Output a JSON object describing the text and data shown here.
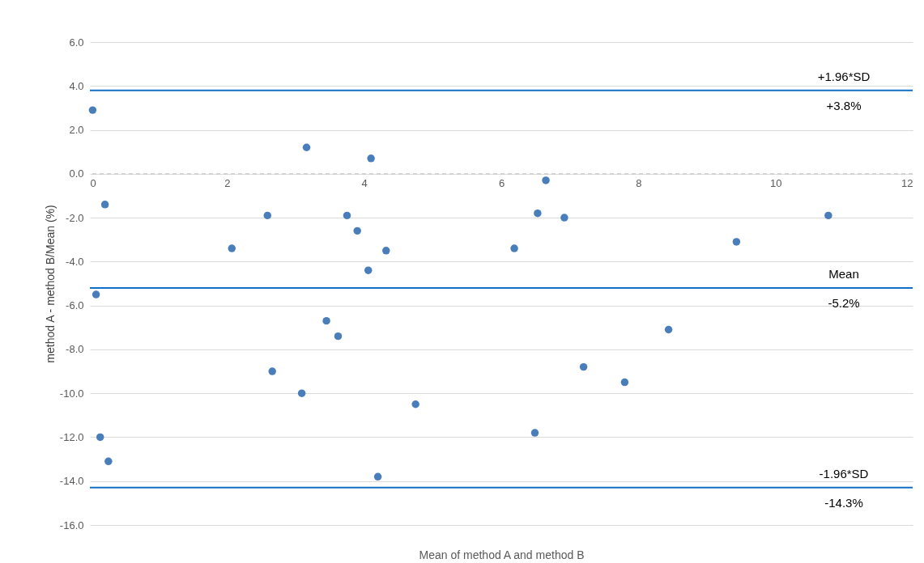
{
  "chart_data": {
    "type": "scatter",
    "xlabel": "Mean of method A and method B",
    "ylabel": "method A - method B/Mean (%)",
    "xlim": [
      0,
      12
    ],
    "xticks": [
      0,
      2,
      4,
      6,
      8,
      10,
      12
    ],
    "ylim": [
      -16,
      6
    ],
    "yticks": [
      {
        "value": -16,
        "label": "-16.0"
      },
      {
        "value": -14,
        "label": "-14.0"
      },
      {
        "value": -12,
        "label": "-12.0"
      },
      {
        "value": -10,
        "label": "-10.0"
      },
      {
        "value": -8,
        "label": "-8.0"
      },
      {
        "value": -6,
        "label": "-6.0"
      },
      {
        "value": -4,
        "label": "-4.0"
      },
      {
        "value": -2,
        "label": "-2.0"
      },
      {
        "value": 0,
        "label": "0.0"
      },
      {
        "value": 2,
        "label": "2.0"
      },
      {
        "value": 4,
        "label": "4.0"
      },
      {
        "value": 6,
        "label": "6.0"
      }
    ],
    "grid": "y",
    "marker": "circle",
    "series": [
      {
        "color": "#4a7ebb",
        "x": [
          0.04,
          0.22,
          0.09,
          0.15,
          0.27,
          2.07,
          2.59,
          2.66,
          3.16,
          3.09,
          3.45,
          3.62,
          3.75,
          3.9,
          4.06,
          4.1,
          4.32,
          4.2,
          4.75,
          6.19,
          6.49,
          6.53,
          6.65,
          6.92,
          7.2,
          7.8,
          8.44,
          9.43,
          10.77
        ],
        "values": [
          2.9,
          -1.4,
          -5.5,
          -12.0,
          -13.1,
          -3.4,
          -1.9,
          -9.0,
          1.2,
          -10.0,
          -6.7,
          -7.4,
          -1.9,
          -2.6,
          -4.4,
          0.7,
          -3.5,
          -13.8,
          -10.5,
          -3.4,
          -11.8,
          -1.8,
          -0.3,
          -2.0,
          -8.8,
          -9.5,
          -7.1,
          -3.1,
          -1.9
        ]
      }
    ],
    "ref_lines": [
      {
        "axis": "y",
        "value": 0,
        "label": null,
        "color": "#bfbfbf",
        "line_style": "dashed"
      },
      {
        "axis": "y",
        "value": 3.8,
        "label": "+1.96*SD",
        "color": "#0f6fc6",
        "line_style": "solid"
      },
      {
        "axis": "y",
        "value": -5.2,
        "label": "Mean",
        "color": "#0f6fc6",
        "line_style": "solid"
      },
      {
        "axis": "y",
        "value": -14.3,
        "label": "-1.96*SD",
        "color": "#0f6fc6",
        "line_style": "solid"
      }
    ],
    "annotations": [
      {
        "text": "+3.8%",
        "y": 3.8
      },
      {
        "text": "-5.2%",
        "y": -5.2
      },
      {
        "text": "-14.3%",
        "y": -14.3
      }
    ]
  }
}
